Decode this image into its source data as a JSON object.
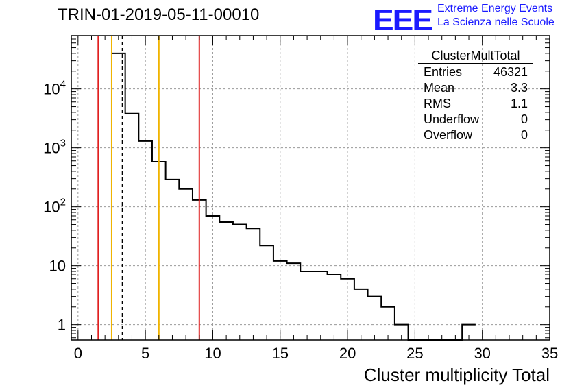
{
  "title": "TRIN-01-2019-05-11-00010",
  "logo": {
    "mark": "EEE",
    "line1": "Extreme Energy Events",
    "line2": "La Scienza nelle Scuole"
  },
  "stats": {
    "name": "ClusterMultTotal",
    "rows": [
      {
        "label": "Entries",
        "value": "46321"
      },
      {
        "label": "Mean",
        "value": "3.3"
      },
      {
        "label": "RMS",
        "value": "1.1"
      },
      {
        "label": "Underflow",
        "value": "0"
      },
      {
        "label": "Overflow",
        "value": "0"
      }
    ]
  },
  "chart_data": {
    "type": "histogram",
    "title": "TRIN-01-2019-05-11-00010",
    "xlabel": "Cluster multiplicity Total",
    "ylabel": "",
    "xlim": [
      -0.5,
      35
    ],
    "ylim": [
      0.55,
      80000
    ],
    "yscale": "log",
    "grid": true,
    "legend": "top-right",
    "xticks": [
      0,
      5,
      10,
      15,
      20,
      25,
      30,
      35
    ],
    "yticks": [
      {
        "value": 1,
        "label": "1"
      },
      {
        "value": 10,
        "label": "10"
      },
      {
        "value": 100,
        "label": "10^2"
      },
      {
        "value": 1000,
        "label": "10^3"
      },
      {
        "value": 10000,
        "label": "10^4"
      }
    ],
    "bin_edges": [
      2.5,
      3.5,
      4.5,
      5.5,
      6.5,
      7.5,
      8.5,
      9.5,
      10.5,
      11.5,
      12.5,
      13.5,
      14.5,
      15.5,
      16.5,
      17.5,
      18.5,
      19.5,
      20.5,
      21.5,
      22.5,
      23.5,
      24.5,
      25.5,
      26.5,
      27.5,
      28.5,
      29.5
    ],
    "counts": [
      40000,
      3800,
      1300,
      580,
      290,
      200,
      130,
      70,
      55,
      50,
      43,
      22,
      12,
      11,
      8,
      8,
      7,
      6,
      4,
      3,
      2,
      1,
      0,
      0,
      0,
      0,
      1
    ],
    "vertical_lines": [
      {
        "x": 1.5,
        "color": "#e02020",
        "style": "solid"
      },
      {
        "x": 2.5,
        "color": "#f0b400",
        "style": "solid"
      },
      {
        "x": 3.3,
        "color": "#000000",
        "style": "dashed"
      },
      {
        "x": 6.0,
        "color": "#f0b400",
        "style": "solid"
      },
      {
        "x": 9.0,
        "color": "#e02020",
        "style": "solid"
      }
    ]
  }
}
